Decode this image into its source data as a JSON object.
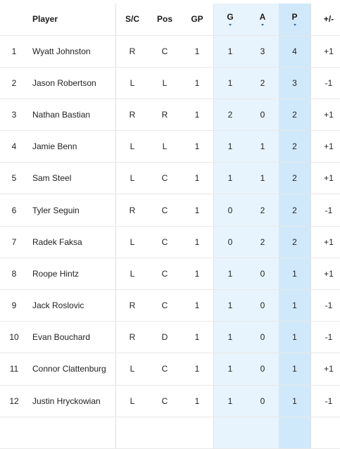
{
  "headers": {
    "rank": "",
    "player": "Player",
    "sc": "S/C",
    "pos": "Pos",
    "gp": "GP",
    "g": "G",
    "a": "A",
    "p": "P",
    "pm": "+/-"
  },
  "rows": [
    {
      "rank": "1",
      "player": "Wyatt Johnston",
      "sc": "R",
      "pos": "C",
      "gp": "1",
      "g": "1",
      "a": "3",
      "p": "4",
      "pm": "+1"
    },
    {
      "rank": "2",
      "player": "Jason Robertson",
      "sc": "L",
      "pos": "L",
      "gp": "1",
      "g": "1",
      "a": "2",
      "p": "3",
      "pm": "-1"
    },
    {
      "rank": "3",
      "player": "Nathan Bastian",
      "sc": "R",
      "pos": "R",
      "gp": "1",
      "g": "2",
      "a": "0",
      "p": "2",
      "pm": "+1"
    },
    {
      "rank": "4",
      "player": "Jamie Benn",
      "sc": "L",
      "pos": "L",
      "gp": "1",
      "g": "1",
      "a": "1",
      "p": "2",
      "pm": "+1"
    },
    {
      "rank": "5",
      "player": "Sam Steel",
      "sc": "L",
      "pos": "C",
      "gp": "1",
      "g": "1",
      "a": "1",
      "p": "2",
      "pm": "+1"
    },
    {
      "rank": "6",
      "player": "Tyler Seguin",
      "sc": "R",
      "pos": "C",
      "gp": "1",
      "g": "0",
      "a": "2",
      "p": "2",
      "pm": "-1"
    },
    {
      "rank": "7",
      "player": "Radek Faksa",
      "sc": "L",
      "pos": "C",
      "gp": "1",
      "g": "0",
      "a": "2",
      "p": "2",
      "pm": "+1"
    },
    {
      "rank": "8",
      "player": "Roope Hintz",
      "sc": "L",
      "pos": "C",
      "gp": "1",
      "g": "1",
      "a": "0",
      "p": "1",
      "pm": "+1"
    },
    {
      "rank": "9",
      "player": "Jack Roslovic",
      "sc": "R",
      "pos": "C",
      "gp": "1",
      "g": "1",
      "a": "0",
      "p": "1",
      "pm": "-1"
    },
    {
      "rank": "10",
      "player": "Evan Bouchard",
      "sc": "R",
      "pos": "D",
      "gp": "1",
      "g": "1",
      "a": "0",
      "p": "1",
      "pm": "-1"
    },
    {
      "rank": "11",
      "player": "Connor Clattenburg",
      "sc": "L",
      "pos": "C",
      "gp": "1",
      "g": "1",
      "a": "0",
      "p": "1",
      "pm": "+1"
    },
    {
      "rank": "12",
      "player": "Justin Hryckowian",
      "sc": "L",
      "pos": "C",
      "gp": "1",
      "g": "1",
      "a": "0",
      "p": "1",
      "pm": "-1"
    }
  ],
  "colors": {
    "highlight_light": "#e8f4fd",
    "highlight_sorted": "#cfe9fb",
    "sort_indicator": "#3a6b9a"
  },
  "icons": {
    "sort": "sort-indicator-icon"
  }
}
